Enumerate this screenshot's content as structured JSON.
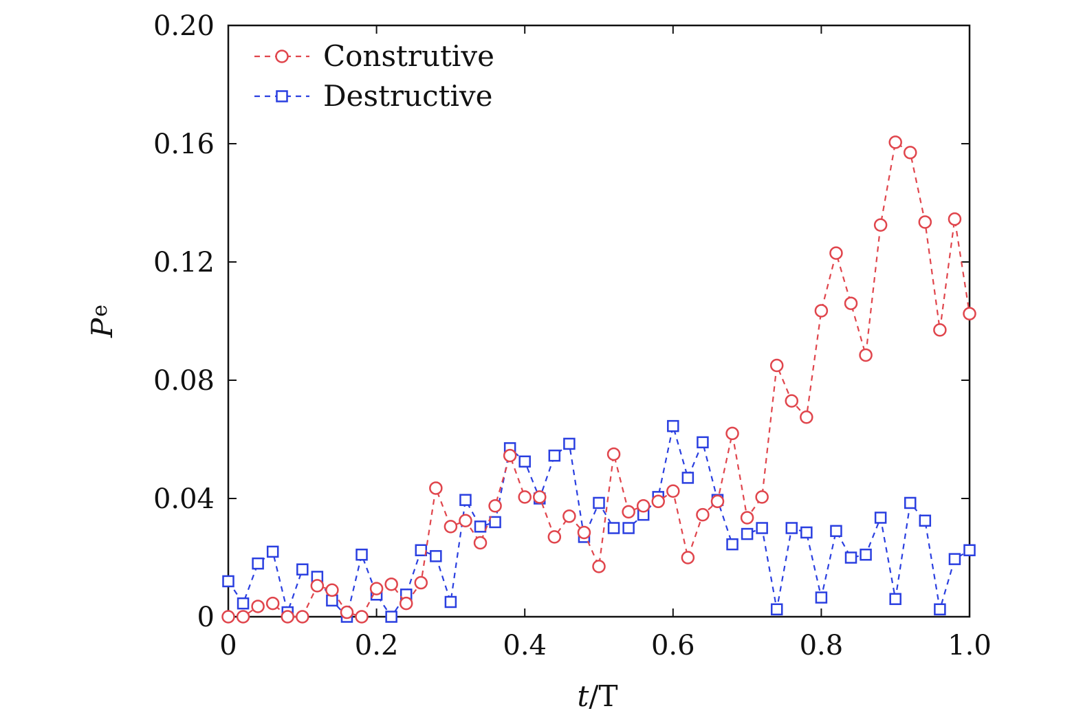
{
  "chart_data": {
    "type": "line",
    "title": "",
    "xlabel": "t/T",
    "ylabel": "Pe",
    "xlabel_parts": {
      "italic": "t",
      "rest": "/T"
    },
    "ylabel_parts": {
      "main": "P",
      "sub": "e"
    },
    "xlim": [
      0,
      1.0
    ],
    "ylim": [
      0,
      0.2
    ],
    "xticks": [
      0,
      0.2,
      0.4,
      0.6,
      0.8,
      1.0
    ],
    "xtick_labels": [
      "0",
      "0.2",
      "0.4",
      "0.6",
      "0.8",
      "1.0"
    ],
    "yticks": [
      0,
      0.04,
      0.08,
      0.12,
      0.16,
      0.2
    ],
    "ytick_labels": [
      "0",
      "0.04",
      "0.08",
      "0.12",
      "0.16",
      "0.20"
    ],
    "grid": false,
    "legend_position": "top-left",
    "x": [
      0,
      0.02,
      0.04,
      0.06,
      0.08,
      0.1,
      0.12,
      0.14,
      0.16,
      0.18,
      0.2,
      0.22,
      0.24,
      0.26,
      0.28,
      0.3,
      0.32,
      0.34,
      0.36,
      0.38,
      0.4,
      0.42,
      0.44,
      0.46,
      0.48,
      0.5,
      0.52,
      0.54,
      0.56,
      0.58,
      0.6,
      0.62,
      0.64,
      0.66,
      0.68,
      0.7,
      0.72,
      0.74,
      0.76,
      0.78,
      0.8,
      0.82,
      0.84,
      0.86,
      0.88,
      0.9,
      0.92,
      0.94,
      0.96,
      0.98,
      1.0
    ],
    "series": [
      {
        "name": "Construtive",
        "color": "#e0454c",
        "marker": "circle",
        "values": [
          0.0,
          0.0,
          0.0035,
          0.0045,
          0.0,
          0.0,
          0.0105,
          0.009,
          0.0015,
          0.0,
          0.0095,
          0.011,
          0.0045,
          0.0115,
          0.0435,
          0.0305,
          0.0325,
          0.025,
          0.0375,
          0.0545,
          0.0405,
          0.0405,
          0.027,
          0.034,
          0.0285,
          0.017,
          0.055,
          0.0355,
          0.0375,
          0.039,
          0.0425,
          0.02,
          0.0345,
          0.039,
          0.062,
          0.0335,
          0.0405,
          0.085,
          0.073,
          0.0675,
          0.1035,
          0.123,
          0.106,
          0.0885,
          0.1325,
          0.1605,
          0.157,
          0.1335,
          0.097,
          0.1345,
          0.1025
        ]
      },
      {
        "name": "Destructive",
        "color": "#2a3fe0",
        "marker": "square",
        "values": [
          0.012,
          0.0045,
          0.018,
          0.022,
          0.0015,
          0.016,
          0.0135,
          0.0055,
          0.0,
          0.021,
          0.0075,
          0.0,
          0.0075,
          0.0225,
          0.0205,
          0.005,
          0.0395,
          0.0305,
          0.032,
          0.057,
          0.0525,
          0.04,
          0.0545,
          0.0585,
          0.027,
          0.0385,
          0.03,
          0.03,
          0.0345,
          0.0405,
          0.0645,
          0.047,
          0.059,
          0.0395,
          0.0245,
          0.028,
          0.03,
          0.0025,
          0.03,
          0.0285,
          0.0065,
          0.029,
          0.02,
          0.021,
          0.0335,
          0.006,
          0.0385,
          0.0325,
          0.0025,
          0.0195,
          0.0225
        ]
      }
    ]
  }
}
